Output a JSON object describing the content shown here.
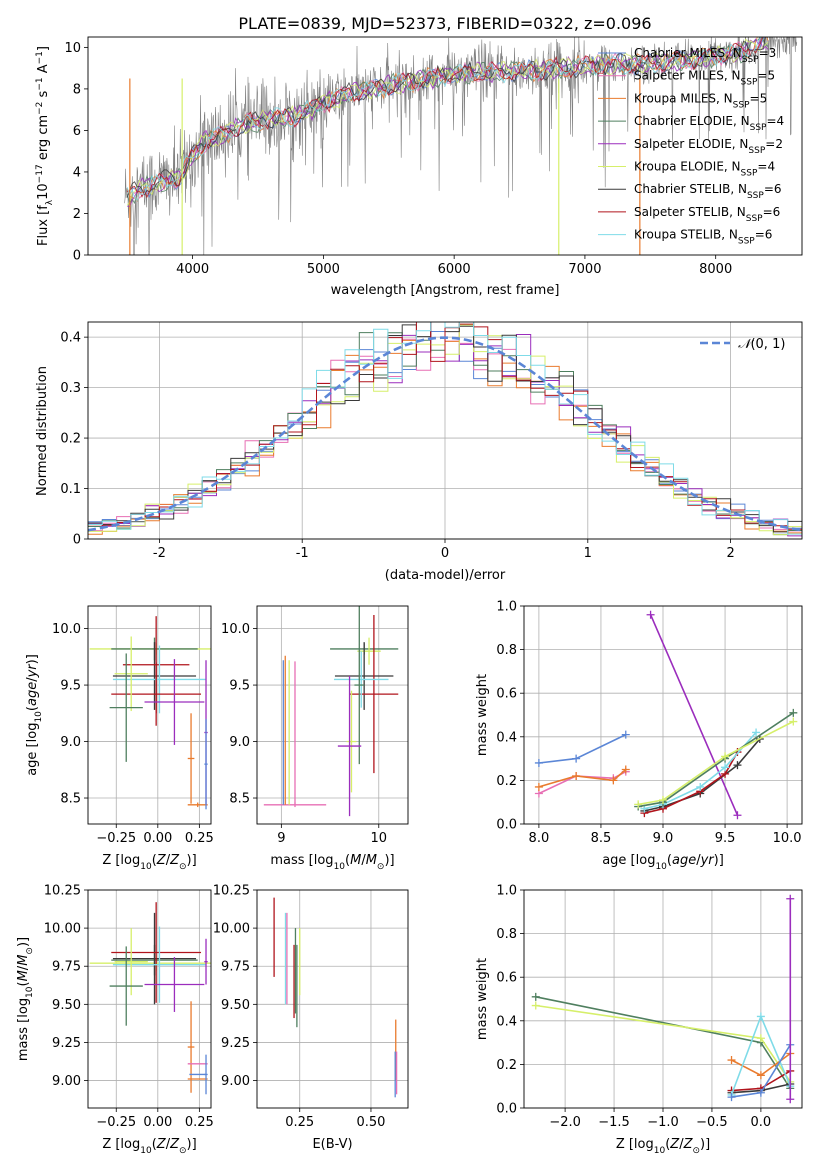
{
  "figure": {
    "title": "PLATE=0839, MJD=52373, FIBERID=0322, z=0.096"
  },
  "chart_data": [
    {
      "id": "spectrum",
      "type": "line",
      "xlabel": "wavelength [Angstrom, rest frame]",
      "ylabel": "Flux [f_λ 10^-17 erg cm^-2 s^-1 A^-1]",
      "xlim": [
        3200,
        8660
      ],
      "ylim": [
        0,
        10.5
      ],
      "xticks": [
        4000,
        5000,
        6000,
        7000,
        8000
      ],
      "yticks": [
        0,
        2,
        4,
        6,
        8,
        10
      ],
      "grid": false,
      "legend_position": "right",
      "data_trend": {
        "x": [
          3500,
          3600,
          3700,
          3800,
          3900,
          4000,
          4100,
          4200,
          4300,
          4400,
          4500,
          4600,
          4700,
          4800,
          4900,
          5000,
          5200,
          5400,
          5600,
          5800,
          6000,
          6200,
          6400,
          6600,
          6800,
          7000,
          7200,
          7400,
          7600,
          7800,
          8000,
          8200,
          8400
        ],
        "y": [
          2.8,
          3.2,
          3.4,
          3.6,
          3.7,
          4.8,
          5.5,
          5.7,
          6.0,
          6.3,
          6.4,
          6.6,
          6.6,
          6.7,
          7.0,
          7.3,
          7.8,
          8.0,
          8.3,
          8.5,
          8.7,
          8.8,
          8.8,
          8.9,
          9.0,
          9.1,
          9.2,
          9.2,
          9.3,
          9.4,
          9.6,
          9.8,
          10.4
        ]
      },
      "series": [
        {
          "name": "Chabrier MILES, N_SSP=3",
          "label_main": "Chabrier MILES, N",
          "label_sub": "SSP",
          "label_tail": "=3",
          "color": "#5b86d6"
        },
        {
          "name": "Salpeter MILES, N_SSP=5",
          "label_main": "Salpeter MILES, N",
          "label_sub": "SSP",
          "label_tail": "=5",
          "color": "#e76fb4"
        },
        {
          "name": "Kroupa MILES, N_SSP=5",
          "label_main": "Kroupa MILES, N",
          "label_sub": "SSP",
          "label_tail": "=5",
          "color": "#e97b2e"
        },
        {
          "name": "Chabrier ELODIE, N_SSP=4",
          "label_main": "Chabrier ELODIE, N",
          "label_sub": "SSP",
          "label_tail": "=4",
          "color": "#4f7f5f"
        },
        {
          "name": "Salpeter ELODIE, N_SSP=2",
          "label_main": "Salpeter ELODIE, N",
          "label_sub": "SSP",
          "label_tail": "=2",
          "color": "#9b2dbd"
        },
        {
          "name": "Kroupa ELODIE, N_SSP=4",
          "label_main": "Kroupa ELODIE, N",
          "label_sub": "SSP",
          "label_tail": "=4",
          "color": "#d6ef6a"
        },
        {
          "name": "Chabrier STELIB, N_SSP=6",
          "label_main": "Chabrier STELIB, N",
          "label_sub": "SSP",
          "label_tail": "=6",
          "color": "#3a3a3a"
        },
        {
          "name": "Salpeter STELIB, N_SSP=6",
          "label_main": "Salpeter STELIB, N",
          "label_sub": "SSP",
          "label_tail": "=6",
          "color": "#b0141c"
        },
        {
          "name": "Kroupa STELIB, N_SSP=6",
          "label_main": "Kroupa STELIB, N",
          "label_sub": "SSP",
          "label_tail": "=6",
          "color": "#7fdbe8"
        }
      ]
    },
    {
      "id": "residuals",
      "type": "line",
      "xlabel": "(data-model)/error",
      "ylabel": "Normed distribution",
      "xlim": [
        -2.5,
        2.5
      ],
      "ylim": [
        0,
        0.43
      ],
      "xticks": [
        -2,
        -1,
        0,
        1,
        2
      ],
      "yticks": [
        0.0,
        0.1,
        0.2,
        0.3,
        0.4
      ],
      "grid": true,
      "legend_position": "top-right",
      "legend": "N(0,1)",
      "gaussian": {
        "mean": 0,
        "sigma": 1,
        "color": "#5b86d6"
      },
      "histogram_colors": [
        "#5b86d6",
        "#e76fb4",
        "#e97b2e",
        "#4f7f5f",
        "#9b2dbd",
        "#d6ef6a",
        "#3a3a3a",
        "#b0141c",
        "#7fdbe8"
      ]
    },
    {
      "id": "age_vs_z",
      "type": "scatter",
      "xlabel": "Z [log10(Z/Z⊙)]",
      "ylabel": "age [log10(age/yr)]",
      "xlim": [
        -0.42,
        0.32
      ],
      "ylim": [
        8.27,
        10.2
      ],
      "xticks": [
        -0.25,
        0.0,
        0.25
      ],
      "xticklabels": [
        "−0.25",
        "0.00",
        "0.25"
      ],
      "yticks": [
        8.5,
        9.0,
        9.5,
        10.0
      ],
      "yticklabels": [
        "8.5",
        "9.0",
        "9.5",
        "10.0"
      ],
      "grid": true,
      "points": [
        {
          "x": -0.01,
          "y": 9.82,
          "xerr": 0.4,
          "yerr": 0.05,
          "color": "#d6ef6a"
        },
        {
          "x": -0.02,
          "y": 9.82,
          "xerr": 0.26,
          "yerr": 0.1,
          "color": "#4f7f5f"
        },
        {
          "x": -0.02,
          "y": 9.58,
          "xerr": 0.25,
          "yerr": 0.3,
          "color": "#3a3a3a"
        },
        {
          "x": -0.01,
          "y": 9.68,
          "xerr": 0.2,
          "yerr": 0.43,
          "color": "#b0141c"
        },
        {
          "x": 0.01,
          "y": 9.55,
          "xerr": 0.28,
          "yerr": 0.3,
          "color": "#7fdbe8"
        },
        {
          "x": -0.01,
          "y": 9.42,
          "xerr": 0.27,
          "yerr": 0.28,
          "color": "#b0141c"
        },
        {
          "x": -0.16,
          "y": 9.6,
          "xerr": 0.1,
          "yerr": 0.33,
          "color": "#d6ef6a"
        },
        {
          "x": -0.19,
          "y": 9.3,
          "xerr": 0.1,
          "yerr": 0.48,
          "color": "#4f7f5f"
        },
        {
          "x": 0.1,
          "y": 9.35,
          "xerr": 0.18,
          "yerr": 0.38,
          "color": "#9b2dbd"
        },
        {
          "x": 0.2,
          "y": 8.85,
          "xerr": 0.02,
          "yerr": 0.4,
          "color": "#e97b2e"
        },
        {
          "x": 0.24,
          "y": 8.44,
          "xerr": 0.06,
          "yerr": 0.02,
          "color": "#e97b2e"
        },
        {
          "x": 0.29,
          "y": 9.08,
          "xerr": 0.01,
          "yerr": 0.64,
          "color": "#9b2dbd"
        },
        {
          "x": 0.29,
          "y": 8.8,
          "xerr": 0.01,
          "yerr": 0.4,
          "color": "#5b86d6"
        }
      ]
    },
    {
      "id": "age_vs_mass",
      "type": "scatter",
      "xlabel": "mass [log10(M/M⊙)]",
      "ylabel": "",
      "xlim": [
        8.75,
        10.3
      ],
      "ylim": [
        8.27,
        10.2
      ],
      "xticks": [
        9,
        10
      ],
      "xticklabels": [
        "9",
        "10"
      ],
      "yticks": [
        8.5,
        9.0,
        9.5,
        10.0
      ],
      "yticklabels": [
        "8.5",
        "9.0",
        "9.5",
        "10.0"
      ],
      "grid": true,
      "points": [
        {
          "x": 9.85,
          "y": 9.82,
          "xerr": 0.35,
          "yerr": 0.05,
          "color": "#4f7f5f"
        },
        {
          "x": 9.9,
          "y": 9.8,
          "xerr": 0.12,
          "yerr": 0.12,
          "color": "#d6ef6a"
        },
        {
          "x": 9.85,
          "y": 9.58,
          "xerr": 0.3,
          "yerr": 0.3,
          "color": "#3a3a3a"
        },
        {
          "x": 9.95,
          "y": 9.42,
          "xerr": 0.25,
          "yerr": 0.7,
          "color": "#b0141c"
        },
        {
          "x": 9.82,
          "y": 9.55,
          "xerr": 0.28,
          "yerr": 0.25,
          "color": "#7fdbe8"
        },
        {
          "x": 9.8,
          "y": 9.5,
          "xerr": 0.05,
          "yerr": 0.7,
          "color": "#4f7f5f"
        },
        {
          "x": 9.72,
          "y": 9.0,
          "xerr": 0.05,
          "yerr": 0.45,
          "color": "#d6ef6a"
        },
        {
          "x": 9.7,
          "y": 8.96,
          "xerr": 0.12,
          "yerr": 0.62,
          "color": "#9b2dbd"
        },
        {
          "x": 9.14,
          "y": 8.44,
          "xerr": 0.32,
          "yerr": 0.02,
          "color": "#e76fb4"
        },
        {
          "x": 9.14,
          "y": 9.08,
          "xerr": 0.0,
          "yerr": 0.63,
          "color": "#e76fb4"
        },
        {
          "x": 9.04,
          "y": 9.1,
          "xerr": 0.0,
          "yerr": 0.66,
          "color": "#e97b2e"
        },
        {
          "x": 9.02,
          "y": 9.08,
          "xerr": 0.0,
          "yerr": 0.64,
          "color": "#5b86d6"
        },
        {
          "x": 9.08,
          "y": 9.08,
          "xerr": 0.0,
          "yerr": 0.64,
          "color": "#d6ef6a"
        }
      ]
    },
    {
      "id": "weight_vs_age",
      "type": "line",
      "xlabel": "age [log10(age/yr)]",
      "ylabel": "mass weight",
      "xlim": [
        7.88,
        10.12
      ],
      "ylim": [
        0,
        1.0
      ],
      "xticks": [
        8.0,
        8.5,
        9.0,
        9.5,
        10.0
      ],
      "xticklabels": [
        "8.0",
        "8.5",
        "9.0",
        "9.5",
        "10.0"
      ],
      "yticks": [
        0.0,
        0.2,
        0.4,
        0.6,
        0.8,
        1.0
      ],
      "yticklabels": [
        "0.0",
        "0.2",
        "0.4",
        "0.6",
        "0.8",
        "1.0"
      ],
      "grid": true,
      "series": [
        {
          "color": "#5b86d6",
          "x": [
            8.0,
            8.3,
            8.7
          ],
          "y": [
            0.28,
            0.3,
            0.41
          ]
        },
        {
          "color": "#e76fb4",
          "x": [
            8.0,
            8.3,
            8.6,
            8.7
          ],
          "y": [
            0.14,
            0.22,
            0.21,
            0.24
          ]
        },
        {
          "color": "#e97b2e",
          "x": [
            8.0,
            8.3,
            8.6,
            8.7
          ],
          "y": [
            0.17,
            0.22,
            0.2,
            0.25
          ]
        },
        {
          "color": "#9b2dbd",
          "x": [
            8.9,
            9.6
          ],
          "y": [
            0.96,
            0.04
          ]
        },
        {
          "color": "#3a3a3a",
          "x": [
            8.85,
            9.0,
            9.3,
            9.6,
            9.78
          ],
          "y": [
            0.06,
            0.08,
            0.14,
            0.27,
            0.39
          ]
        },
        {
          "color": "#b0141c",
          "x": [
            8.85,
            9.0,
            9.3,
            9.5,
            9.6
          ],
          "y": [
            0.05,
            0.07,
            0.15,
            0.23,
            0.33
          ]
        },
        {
          "color": "#7fdbe8",
          "x": [
            8.85,
            9.0,
            9.3,
            9.5,
            9.75
          ],
          "y": [
            0.07,
            0.09,
            0.17,
            0.26,
            0.42
          ]
        },
        {
          "color": "#4f7f5f",
          "x": [
            8.8,
            9.0,
            9.5,
            10.05
          ],
          "y": [
            0.08,
            0.1,
            0.3,
            0.51
          ]
        },
        {
          "color": "#d6ef6a",
          "x": [
            8.8,
            9.0,
            9.5,
            10.05
          ],
          "y": [
            0.09,
            0.11,
            0.31,
            0.47
          ]
        }
      ]
    },
    {
      "id": "mass_vs_z",
      "type": "scatter",
      "xlabel": "Z [log10(Z/Z⊙)]",
      "ylabel": "mass [log10(M/M⊙)]",
      "xlim": [
        -0.42,
        0.32
      ],
      "ylim": [
        8.82,
        10.25
      ],
      "xticks": [
        -0.25,
        0.0,
        0.25
      ],
      "xticklabels": [
        "−0.25",
        "0.00",
        "0.25"
      ],
      "yticks": [
        9.0,
        9.25,
        9.5,
        9.75,
        10.0,
        10.25
      ],
      "yticklabels": [
        "9.00",
        "9.25",
        "9.50",
        "9.75",
        "10.00",
        "10.25"
      ],
      "grid": true,
      "points": [
        {
          "x": -0.01,
          "y": 9.77,
          "xerr": 0.4,
          "yerr": 0.05,
          "color": "#d6ef6a"
        },
        {
          "x": -0.02,
          "y": 9.79,
          "xerr": 0.26,
          "yerr": 0.1,
          "color": "#4f7f5f"
        },
        {
          "x": -0.02,
          "y": 9.8,
          "xerr": 0.25,
          "yerr": 0.3,
          "color": "#3a3a3a"
        },
        {
          "x": -0.01,
          "y": 9.84,
          "xerr": 0.27,
          "yerr": 0.33,
          "color": "#b0141c"
        },
        {
          "x": 0.01,
          "y": 9.76,
          "xerr": 0.28,
          "yerr": 0.25,
          "color": "#7fdbe8"
        },
        {
          "x": -0.16,
          "y": 9.78,
          "xerr": 0.1,
          "yerr": 0.22,
          "color": "#d6ef6a"
        },
        {
          "x": -0.19,
          "y": 9.62,
          "xerr": 0.1,
          "yerr": 0.26,
          "color": "#4f7f5f"
        },
        {
          "x": 0.1,
          "y": 9.63,
          "xerr": 0.18,
          "yerr": 0.18,
          "color": "#9b2dbd"
        },
        {
          "x": 0.29,
          "y": 9.78,
          "xerr": 0.01,
          "yerr": 0.15,
          "color": "#9b2dbd"
        },
        {
          "x": 0.2,
          "y": 9.22,
          "xerr": 0.02,
          "yerr": 0.3,
          "color": "#e97b2e"
        },
        {
          "x": 0.24,
          "y": 9.11,
          "xerr": 0.06,
          "yerr": 0.0,
          "color": "#e76fb4"
        },
        {
          "x": 0.24,
          "y": 9.01,
          "xerr": 0.06,
          "yerr": 0.0,
          "color": "#e97b2e"
        },
        {
          "x": 0.29,
          "y": 9.04,
          "xerr": 0.01,
          "yerr": 0.13,
          "color": "#5b86d6"
        },
        {
          "x": 0.24,
          "y": 9.04,
          "xerr": 0.05,
          "yerr": 0.0,
          "color": "#5b86d6"
        }
      ]
    },
    {
      "id": "mass_vs_ebv",
      "type": "scatter",
      "xlabel": "E(B-V)",
      "ylabel": "",
      "xlim": [
        0.1,
        0.63
      ],
      "ylim": [
        8.82,
        10.25
      ],
      "xticks": [
        0.25,
        0.5
      ],
      "xticklabels": [
        "0.25",
        "0.50"
      ],
      "yticks": [
        9.0,
        9.25,
        9.5,
        9.75,
        10.0,
        10.25
      ],
      "yticklabels": [
        "9.00",
        "9.25",
        "9.50",
        "9.75",
        "10.00",
        "10.25"
      ],
      "grid": true,
      "points": [
        {
          "x": 0.16,
          "y": 9.94,
          "xerr": 0,
          "yerr": 0.26,
          "color": "#b0141c"
        },
        {
          "x": 0.2,
          "y": 9.8,
          "xerr": 0,
          "yerr": 0.3,
          "color": "#7fdbe8"
        },
        {
          "x": 0.205,
          "y": 9.8,
          "xerr": 0,
          "yerr": 0.3,
          "color": "#e76fb4"
        },
        {
          "x": 0.23,
          "y": 9.65,
          "xerr": 0,
          "yerr": 0.24,
          "color": "#b0141c"
        },
        {
          "x": 0.235,
          "y": 9.72,
          "xerr": 0,
          "yerr": 0.28,
          "color": "#4f7f5f"
        },
        {
          "x": 0.24,
          "y": 9.62,
          "xerr": 0,
          "yerr": 0.27,
          "color": "#4f7f5f"
        },
        {
          "x": 0.25,
          "y": 9.78,
          "xerr": 0,
          "yerr": 0.22,
          "color": "#d6ef6a"
        },
        {
          "x": 0.587,
          "y": 9.2,
          "xerr": 0,
          "yerr": 0.2,
          "color": "#e97b2e"
        },
        {
          "x": 0.59,
          "y": 9.05,
          "xerr": 0,
          "yerr": 0.14,
          "color": "#e76fb4"
        },
        {
          "x": 0.585,
          "y": 9.04,
          "xerr": 0,
          "yerr": 0.15,
          "color": "#5b86d6"
        }
      ]
    },
    {
      "id": "weight_vs_z",
      "type": "line",
      "xlabel": "Z [log10(Z/Z⊙)]",
      "ylabel": "mass weight",
      "xlim": [
        -2.42,
        0.42
      ],
      "ylim": [
        0,
        1.0
      ],
      "xticks": [
        -2.0,
        -1.5,
        -1.0,
        -0.5,
        0.0
      ],
      "xticklabels": [
        "−2.0",
        "−1.5",
        "−1.0",
        "−0.5",
        "0.0"
      ],
      "yticks": [
        0.0,
        0.2,
        0.4,
        0.6,
        0.8,
        1.0
      ],
      "yticklabels": [
        "0.0",
        "0.2",
        "0.4",
        "0.6",
        "0.8",
        "1.0"
      ],
      "grid": true,
      "series": [
        {
          "color": "#4f7f5f",
          "x": [
            -2.3,
            0.0,
            0.3
          ],
          "y": [
            0.51,
            0.3,
            0.09
          ]
        },
        {
          "color": "#d6ef6a",
          "x": [
            -2.3,
            0.0,
            0.3
          ],
          "y": [
            0.47,
            0.32,
            0.12
          ]
        },
        {
          "color": "#e97b2e",
          "x": [
            -0.3,
            0.0,
            0.3
          ],
          "y": [
            0.22,
            0.15,
            0.25
          ]
        },
        {
          "color": "#3a3a3a",
          "x": [
            -0.3,
            0.0,
            0.3
          ],
          "y": [
            0.07,
            0.08,
            0.11
          ]
        },
        {
          "color": "#b0141c",
          "x": [
            -0.3,
            0.0,
            0.3
          ],
          "y": [
            0.08,
            0.09,
            0.17
          ]
        },
        {
          "color": "#7fdbe8",
          "x": [
            -0.3,
            0.0,
            0.3
          ],
          "y": [
            0.06,
            0.42,
            0.1
          ]
        },
        {
          "color": "#5b86d6",
          "x": [
            -0.3,
            0.0,
            0.3
          ],
          "y": [
            0.05,
            0.07,
            0.29
          ]
        },
        {
          "color": "#9b2dbd",
          "x": [
            0.3,
            0.3
          ],
          "y": [
            0.96,
            0.04
          ]
        }
      ]
    }
  ]
}
